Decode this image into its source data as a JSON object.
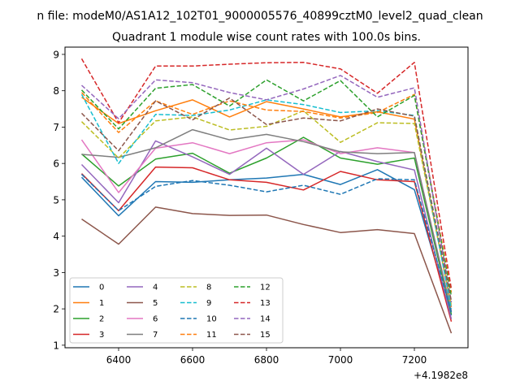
{
  "suptitle": "n file: modeM0/AS1A12_102T01_9000005576_40899cztM0_level2_quad_clean",
  "chart_data": {
    "type": "line",
    "title": "Quadrant 1 module wise count rates with 100.0s bins.",
    "xlabel": "",
    "ylabel": "",
    "x_offset_label": "+4.1982e8",
    "x": [
      6300,
      6400,
      6500,
      6600,
      6700,
      6800,
      6900,
      7000,
      7100,
      7200,
      7300
    ],
    "xlim": [
      6255,
      7345
    ],
    "ylim": [
      0.93,
      9.2
    ],
    "xticks": [
      6400,
      6600,
      6800,
      7000,
      7200
    ],
    "yticks": [
      1,
      2,
      3,
      4,
      5,
      6,
      7,
      8,
      9
    ],
    "legend_position": "lower-left",
    "legend_columns": 4,
    "series": [
      {
        "name": "0",
        "color": "#1f77b4",
        "dash": "solid",
        "values": [
          5.62,
          4.56,
          5.5,
          5.48,
          5.55,
          5.6,
          5.7,
          5.42,
          5.83,
          5.28,
          1.82
        ]
      },
      {
        "name": "1",
        "color": "#ff7f0e",
        "dash": "solid",
        "values": [
          7.82,
          7.1,
          7.45,
          7.75,
          7.28,
          7.7,
          7.5,
          7.28,
          7.42,
          7.22,
          2.05
        ]
      },
      {
        "name": "2",
        "color": "#2ca02c",
        "dash": "solid",
        "values": [
          6.26,
          5.38,
          6.12,
          6.28,
          5.73,
          6.15,
          6.72,
          6.15,
          5.98,
          6.15,
          1.85
        ]
      },
      {
        "name": "3",
        "color": "#d62728",
        "dash": "solid",
        "values": [
          5.72,
          4.7,
          5.9,
          5.88,
          5.55,
          5.48,
          5.27,
          5.78,
          5.55,
          5.5,
          1.65
        ]
      },
      {
        "name": "4",
        "color": "#9467bd",
        "dash": "solid",
        "values": [
          5.97,
          4.92,
          6.62,
          6.18,
          5.7,
          6.42,
          5.7,
          6.33,
          6.05,
          5.82,
          1.72
        ]
      },
      {
        "name": "5",
        "color": "#8c564b",
        "dash": "solid",
        "values": [
          4.47,
          3.78,
          4.8,
          4.62,
          4.57,
          4.58,
          4.32,
          4.1,
          4.18,
          4.07,
          1.33
        ]
      },
      {
        "name": "6",
        "color": "#e377c2",
        "dash": "solid",
        "values": [
          6.65,
          5.2,
          6.42,
          6.57,
          6.27,
          6.57,
          6.65,
          6.27,
          6.43,
          6.3,
          1.95
        ]
      },
      {
        "name": "7",
        "color": "#7f7f7f",
        "dash": "solid",
        "values": [
          6.25,
          6.17,
          6.43,
          6.93,
          6.65,
          6.8,
          6.6,
          6.32,
          6.27,
          6.3,
          1.92
        ]
      },
      {
        "name": "8",
        "color": "#bcbd22",
        "dash": "dashed",
        "values": [
          7.15,
          6.15,
          7.17,
          7.28,
          6.92,
          7.02,
          7.45,
          6.58,
          7.12,
          7.1,
          2.1
        ]
      },
      {
        "name": "9",
        "color": "#17becf",
        "dash": "dashed",
        "values": [
          7.9,
          6.0,
          7.35,
          7.32,
          7.47,
          7.75,
          7.62,
          7.4,
          7.45,
          7.32,
          2.0
        ]
      },
      {
        "name": "10",
        "color": "#1f77b4",
        "dash": "dashed",
        "values": [
          5.7,
          4.7,
          5.37,
          5.53,
          5.4,
          5.22,
          5.4,
          5.15,
          5.58,
          5.55,
          1.9
        ]
      },
      {
        "name": "11",
        "color": "#ff7f0e",
        "dash": "dashed",
        "values": [
          7.95,
          6.85,
          7.72,
          7.35,
          7.72,
          7.47,
          7.43,
          7.25,
          7.4,
          7.9,
          2.45
        ]
      },
      {
        "name": "12",
        "color": "#2ca02c",
        "dash": "dashed",
        "values": [
          8.02,
          6.95,
          8.07,
          8.17,
          7.58,
          8.3,
          7.72,
          8.28,
          7.28,
          7.87,
          2.35
        ]
      },
      {
        "name": "13",
        "color": "#d62728",
        "dash": "dashed",
        "values": [
          8.88,
          7.12,
          8.68,
          8.68,
          8.73,
          8.77,
          8.78,
          8.6,
          7.93,
          8.78,
          2.55
        ]
      },
      {
        "name": "14",
        "color": "#9467bd",
        "dash": "dashed",
        "values": [
          8.15,
          7.23,
          8.3,
          8.22,
          7.95,
          7.75,
          8.05,
          8.42,
          7.82,
          8.08,
          2.18
        ]
      },
      {
        "name": "15",
        "color": "#8c564b",
        "dash": "dashed",
        "values": [
          7.38,
          6.35,
          7.72,
          7.2,
          7.8,
          7.07,
          7.25,
          7.17,
          7.5,
          7.3,
          2.22
        ]
      }
    ]
  }
}
